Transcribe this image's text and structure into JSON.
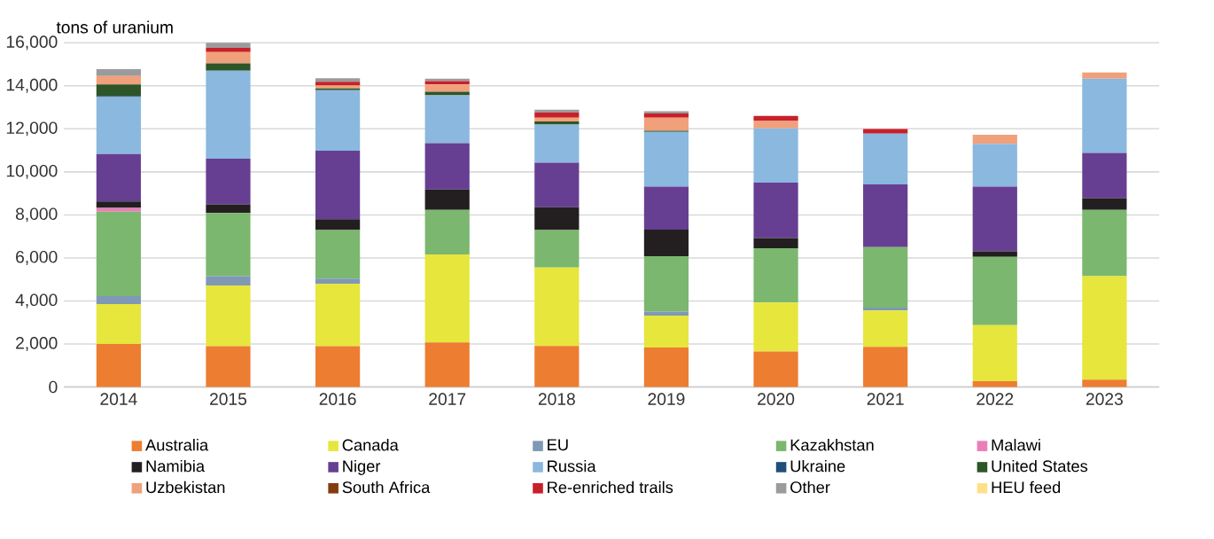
{
  "chart_data": {
    "type": "bar",
    "stacked": true,
    "ylabel": "tons of uranium",
    "categories": [
      "2014",
      "2015",
      "2016",
      "2017",
      "2018",
      "2019",
      "2020",
      "2021",
      "2022",
      "2023"
    ],
    "ylim": [
      0,
      16000
    ],
    "yticks": [
      0,
      {
        "value": 2000,
        "label": "2,000"
      },
      {
        "value": 4000,
        "label": "4,000"
      },
      {
        "value": 6000,
        "label": "6,000"
      },
      {
        "value": 8000,
        "label": "8,000"
      },
      {
        "value": 10000,
        "label": "10,000"
      },
      {
        "value": 12000,
        "label": "12,000"
      },
      {
        "value": 14000,
        "label": "14,000"
      },
      {
        "value": 16000,
        "label": "16,000"
      }
    ],
    "grid": "y",
    "legend": "bottom",
    "series": [
      {
        "name": "Australia",
        "color": "#ed7d31",
        "values": [
          2000,
          1900,
          1900,
          2070,
          1910,
          1830,
          1650,
          1860,
          270,
          340
        ]
      },
      {
        "name": "Canada",
        "color": "#e6e63c",
        "values": [
          1850,
          2820,
          2900,
          4090,
          3640,
          1490,
          2280,
          1700,
          2600,
          4810
        ]
      },
      {
        "name": "EU",
        "color": "#7f98b6",
        "values": [
          370,
          430,
          240,
          null,
          null,
          180,
          null,
          130,
          null,
          null
        ]
      },
      {
        "name": "Kazakhstan",
        "color": "#7bb76e",
        "values": [
          3930,
          2940,
          2260,
          2070,
          1750,
          2580,
          2520,
          2810,
          3180,
          3080
        ]
      },
      {
        "name": "Malawi",
        "color": "#e87fb8",
        "values": [
          180,
          null,
          null,
          null,
          null,
          null,
          null,
          null,
          null,
          null
        ]
      },
      {
        "name": "Namibia",
        "color": "#231f20",
        "values": [
          290,
          400,
          500,
          950,
          1060,
          1240,
          470,
          null,
          260,
          550
        ]
      },
      {
        "name": "Niger",
        "color": "#663f92",
        "values": [
          2210,
          2120,
          3180,
          2150,
          2070,
          1990,
          2580,
          2920,
          3000,
          2100
        ]
      },
      {
        "name": "Russia",
        "color": "#8ab8de",
        "values": [
          2650,
          4090,
          2820,
          2230,
          1770,
          2550,
          2520,
          2360,
          1990,
          3450
        ]
      },
      {
        "name": "Ukraine",
        "color": "#1f4e79",
        "values": [
          50,
          null,
          null,
          null,
          null,
          null,
          null,
          null,
          null,
          null
        ]
      },
      {
        "name": "United States",
        "color": "#2e5528",
        "values": [
          530,
          340,
          80,
          160,
          140,
          50,
          null,
          null,
          null,
          null
        ]
      },
      {
        "name": "Uzbekistan",
        "color": "#f0a07a",
        "values": [
          400,
          530,
          130,
          340,
          180,
          610,
          340,
          null,
          430,
          290
        ]
      },
      {
        "name": "South Africa",
        "color": "#843c0c",
        "values": [
          null,
          null,
          null,
          null,
          null,
          null,
          null,
          null,
          null,
          null
        ]
      },
      {
        "name": "Re-enriched trails",
        "color": "#c8202a",
        "values": [
          null,
          190,
          180,
          160,
          240,
          190,
          240,
          210,
          null,
          null
        ]
      },
      {
        "name": "Other",
        "color": "#9b9b9b",
        "values": [
          320,
          240,
          160,
          110,
          130,
          110,
          null,
          null,
          null,
          null
        ]
      },
      {
        "name": "HEU feed",
        "color": "#ffe08a",
        "values": [
          null,
          null,
          null,
          null,
          null,
          null,
          null,
          null,
          null,
          null
        ]
      }
    ]
  }
}
